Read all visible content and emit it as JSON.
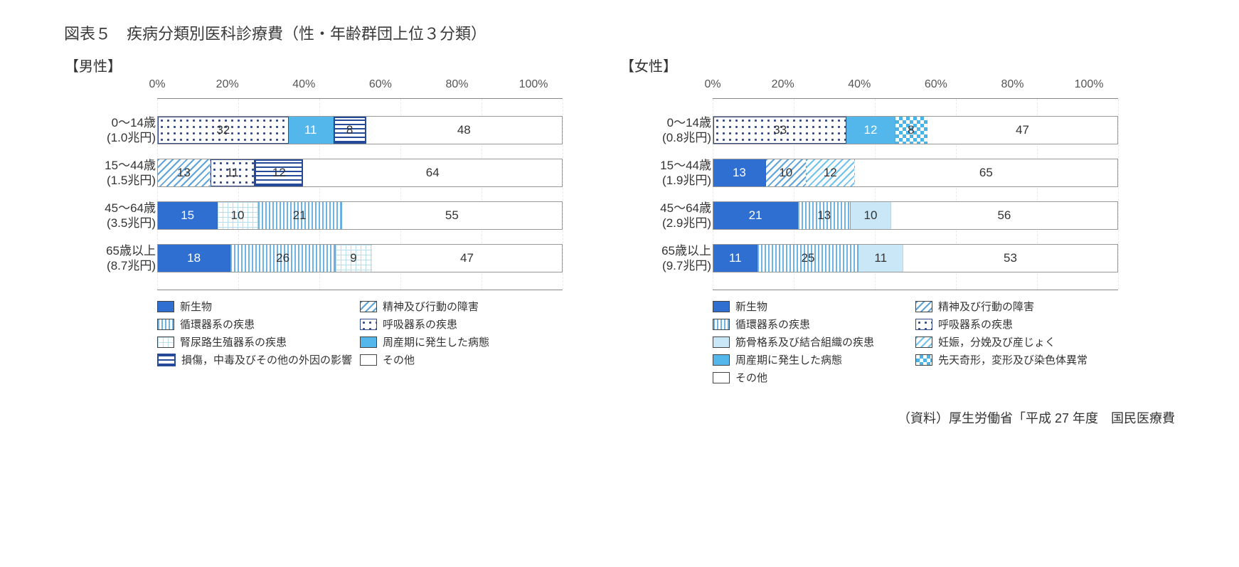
{
  "title": "図表５　疾病分類別医科診療費（性・年齢群団上位３分類）",
  "source": "（資料）厚生労働省「平成 27 年度　国民医療費",
  "axis": {
    "ticks": [
      "0%",
      "20%",
      "40%",
      "60%",
      "80%",
      "100%"
    ],
    "tick_step_pct": 20
  },
  "palette": {
    "solid_blue": {
      "type": "solid",
      "fill": "#2f6fd1",
      "text": "#ffffff",
      "label": "新生物"
    },
    "vstripe_blue": {
      "type": "vstripe",
      "fill": "#6db3e6",
      "bg": "#ffffff",
      "text": "#333333",
      "label": "循環器系の疾患"
    },
    "grid_blue": {
      "type": "grid",
      "fill": "#b8deee",
      "bg": "#ffffff",
      "text": "#333333",
      "label": "腎尿路生殖器系の疾患"
    },
    "hstripe_navy": {
      "type": "hstripe",
      "fill": "#264a9a",
      "bg": "#ffffff",
      "text": "#333333",
      "label": "損傷，中毒及びその他の外因の影響"
    },
    "diag_blue": {
      "type": "diag",
      "fill": "#5ea3db",
      "bg": "#ffffff",
      "text": "#333333",
      "label": "精神及び行動の障害"
    },
    "dots_navy": {
      "type": "dots",
      "fill": "#334a8a",
      "bg": "#ffffff",
      "text": "#333333",
      "label": "呼吸器系の疾患"
    },
    "sky": {
      "type": "solid",
      "fill": "#53b7eb",
      "text": "#ffffff",
      "label": "周産期に発生した病態"
    },
    "other": {
      "type": "solid",
      "fill": "#ffffff",
      "text": "#333333",
      "label": "その他"
    },
    "lightblue": {
      "type": "solid",
      "fill": "#c9e7f7",
      "text": "#333333",
      "label": "筋骨格系及び結合組織の疾患"
    },
    "diag_sky": {
      "type": "diag",
      "fill": "#6fc2ec",
      "bg": "#ffffff",
      "text": "#333333",
      "label": "妊娠，分娩及び産じょく"
    },
    "check_sky": {
      "type": "check",
      "fill": "#49b4e8",
      "bg": "#ffffff",
      "text": "#333333",
      "label": "先天奇形，変形及び染色体異常"
    }
  },
  "panels": [
    {
      "heading": "【男性】",
      "rows": [
        {
          "label1": "0～14歳",
          "label2": "(1.0兆円)",
          "segments": [
            {
              "p": "dots_navy",
              "v": 32
            },
            {
              "p": "sky",
              "v": 11
            },
            {
              "p": "hstripe_navy",
              "v": 8
            },
            {
              "p": "other",
              "v": 48
            }
          ]
        },
        {
          "label1": "15～44歳",
          "label2": "(1.5兆円)",
          "segments": [
            {
              "p": "diag_blue",
              "v": 13
            },
            {
              "p": "dots_navy",
              "v": 11
            },
            {
              "p": "hstripe_navy",
              "v": 12
            },
            {
              "p": "other",
              "v": 64
            }
          ]
        },
        {
          "label1": "45～64歳",
          "label2": "(3.5兆円)",
          "segments": [
            {
              "p": "solid_blue",
              "v": 15
            },
            {
              "p": "grid_blue",
              "v": 10
            },
            {
              "p": "vstripe_blue",
              "v": 21
            },
            {
              "p": "other",
              "v": 55
            }
          ]
        },
        {
          "label1": "65歳以上",
          "label2": "(8.7兆円)",
          "segments": [
            {
              "p": "solid_blue",
              "v": 18
            },
            {
              "p": "vstripe_blue",
              "v": 26
            },
            {
              "p": "grid_blue",
              "v": 9
            },
            {
              "p": "other",
              "v": 47
            }
          ]
        }
      ],
      "legend": [
        "solid_blue",
        "diag_blue",
        "vstripe_blue",
        "dots_navy",
        "grid_blue",
        "sky",
        "hstripe_navy",
        "other"
      ]
    },
    {
      "heading": "【女性】",
      "rows": [
        {
          "label1": "0～14歳",
          "label2": "(0.8兆円)",
          "segments": [
            {
              "p": "dots_navy",
              "v": 33
            },
            {
              "p": "sky",
              "v": 12
            },
            {
              "p": "check_sky",
              "v": 8
            },
            {
              "p": "other",
              "v": 47
            }
          ]
        },
        {
          "label1": "15～44歳",
          "label2": "(1.9兆円)",
          "segments": [
            {
              "p": "solid_blue",
              "v": 13
            },
            {
              "p": "diag_blue",
              "v": 10
            },
            {
              "p": "diag_sky",
              "v": 12
            },
            {
              "p": "other",
              "v": 65
            }
          ]
        },
        {
          "label1": "45～64歳",
          "label2": "(2.9兆円)",
          "segments": [
            {
              "p": "solid_blue",
              "v": 21
            },
            {
              "p": "vstripe_blue",
              "v": 13
            },
            {
              "p": "lightblue",
              "v": 10
            },
            {
              "p": "other",
              "v": 56
            }
          ]
        },
        {
          "label1": "65歳以上",
          "label2": "(9.7兆円)",
          "segments": [
            {
              "p": "solid_blue",
              "v": 11
            },
            {
              "p": "vstripe_blue",
              "v": 25
            },
            {
              "p": "lightblue",
              "v": 11
            },
            {
              "p": "other",
              "v": 53
            }
          ]
        }
      ],
      "legend": [
        "solid_blue",
        "diag_blue",
        "vstripe_blue",
        "dots_navy",
        "lightblue",
        "diag_sky",
        "sky",
        "check_sky",
        "other"
      ]
    }
  ]
}
